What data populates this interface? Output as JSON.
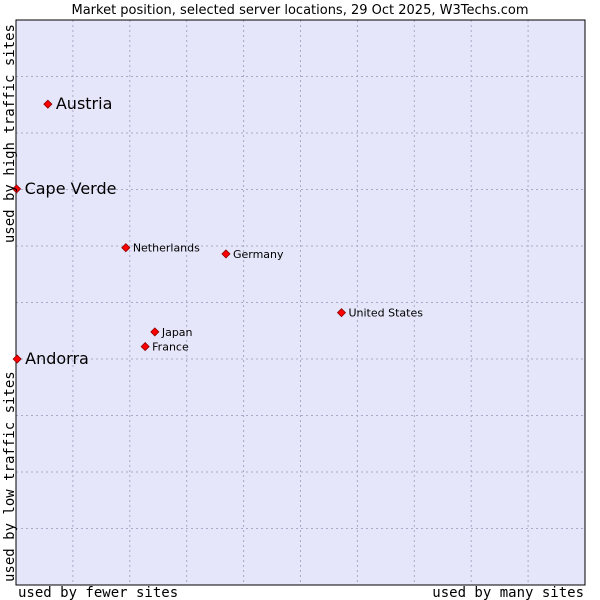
{
  "chart_data": {
    "type": "scatter",
    "title": "Market position, selected server locations, 29 Oct 2025, W3Techs.com",
    "x_axis": {
      "low_label": "used by fewer sites",
      "high_label": "used by many sites",
      "range": [
        0,
        100
      ],
      "grid": true
    },
    "y_axis": {
      "low_label": "used by low traffic sites",
      "high_label": "used by high traffic sites",
      "range": [
        0,
        100
      ],
      "grid": true
    },
    "points": [
      {
        "name": "Austria",
        "x": 5.6,
        "y": 85.1,
        "emphasis": true
      },
      {
        "name": "Cape Verde",
        "x": 0.1,
        "y": 70.1,
        "emphasis": true
      },
      {
        "name": "Netherlands",
        "x": 19.3,
        "y": 59.7,
        "emphasis": false
      },
      {
        "name": "Germany",
        "x": 36.9,
        "y": 58.6,
        "emphasis": false
      },
      {
        "name": "United States",
        "x": 57.2,
        "y": 48.2,
        "emphasis": false
      },
      {
        "name": "Japan",
        "x": 24.4,
        "y": 44.8,
        "emphasis": false
      },
      {
        "name": "France",
        "x": 22.7,
        "y": 42.2,
        "emphasis": false
      },
      {
        "name": "Andorra",
        "x": 0.2,
        "y": 40.0,
        "emphasis": true
      }
    ],
    "colors": {
      "plot_background": "#e6e6fa",
      "grid": "#a9a9c8",
      "frame": "#000000",
      "marker_fill": "#ff0000",
      "marker_stroke": "#8b0000"
    }
  }
}
